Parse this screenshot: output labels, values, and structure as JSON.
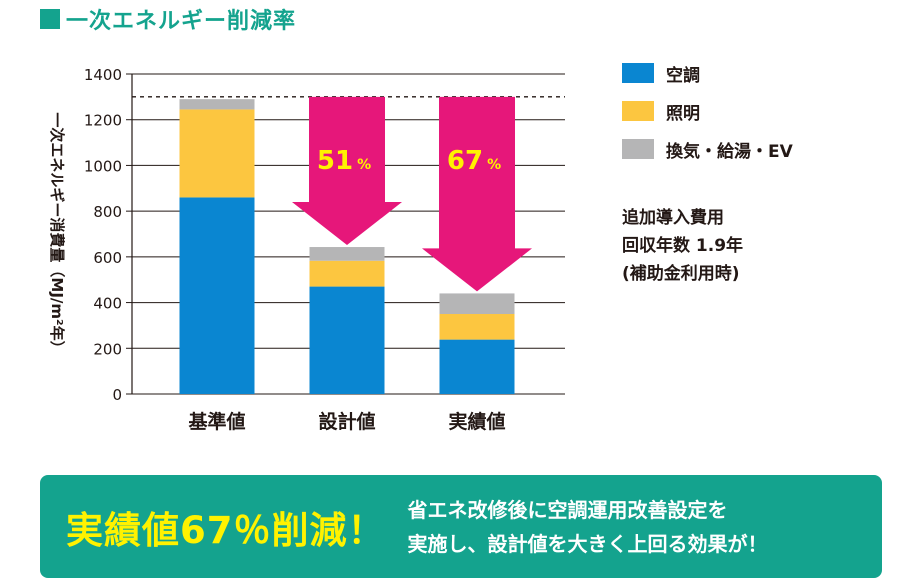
{
  "header": {
    "title": "一次エネルギー削減率"
  },
  "chart_data": {
    "type": "bar",
    "stacked": true,
    "ylabel": "一次エネルギー消費量（MJ/m²年）",
    "ylim": [
      0,
      1400
    ],
    "yticks": [
      "0",
      "200",
      "400",
      "600",
      "800",
      "1000",
      "1200",
      "1400"
    ],
    "grid": true,
    "reference_line": 1300,
    "categories": [
      "基準値",
      "設計値",
      "実績値"
    ],
    "series": [
      {
        "name": "空調",
        "color": "#0a86d1",
        "values": [
          860,
          470,
          238
        ]
      },
      {
        "name": "照明",
        "color": "#fcc640",
        "values": [
          385,
          113,
          112
        ]
      },
      {
        "name": "換気・給湯・EV",
        "color": "#b5b5b6",
        "values": [
          45,
          60,
          90
        ]
      }
    ],
    "annotations": [
      {
        "category": "設計値",
        "value": "51",
        "unit": "%"
      },
      {
        "category": "実績値",
        "value": "67",
        "unit": "%"
      }
    ],
    "legend_position": "right",
    "colors": {
      "arrow": "#e6177a",
      "annotation_text": "#fff200"
    }
  },
  "payback": {
    "lines": [
      "追加導入費用",
      "回収年数 1.9年",
      "(補助金利用時)"
    ]
  },
  "banner": {
    "headline": "実績値67％削減！",
    "detail_lines": [
      "省エネ改修後に空調運用改善設定を",
      "実施し、設計値を大きく上回る効果が！"
    ],
    "color": "#14a38e",
    "headline_color": "#fff200"
  }
}
